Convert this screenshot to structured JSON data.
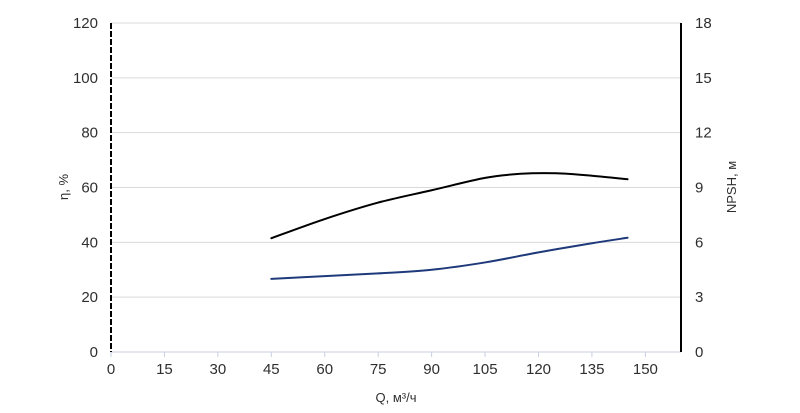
{
  "chart_data": {
    "type": "line",
    "xlabel": "Q, м³/ч",
    "ylabel_left": "η, %",
    "ylabel_right": "NPSH, м",
    "xlim": [
      0,
      160
    ],
    "ylim_left": [
      0,
      120
    ],
    "ylim_right": [
      0,
      18
    ],
    "x_ticks": [
      0,
      15,
      30,
      45,
      60,
      75,
      90,
      105,
      120,
      135,
      150
    ],
    "y_left_ticks": [
      0,
      20,
      40,
      60,
      80,
      100,
      120
    ],
    "y_right_ticks": [
      0,
      3,
      6,
      9,
      12,
      15,
      18
    ],
    "grid": "horizontal",
    "series": [
      {
        "axis": "left",
        "color": "#000000",
        "x": [
          45,
          60,
          75,
          90,
          105,
          115,
          125,
          135,
          145
        ],
        "y": [
          41.5,
          48.5,
          54.5,
          59,
          63.5,
          65,
          65.2,
          64.3,
          63
        ]
      },
      {
        "axis": "right",
        "color": "#1f3a7a",
        "x": [
          45,
          60,
          75,
          90,
          105,
          120,
          135,
          145
        ],
        "y": [
          4.0,
          4.15,
          4.3,
          4.5,
          4.9,
          5.45,
          5.95,
          6.25
        ]
      }
    ]
  }
}
